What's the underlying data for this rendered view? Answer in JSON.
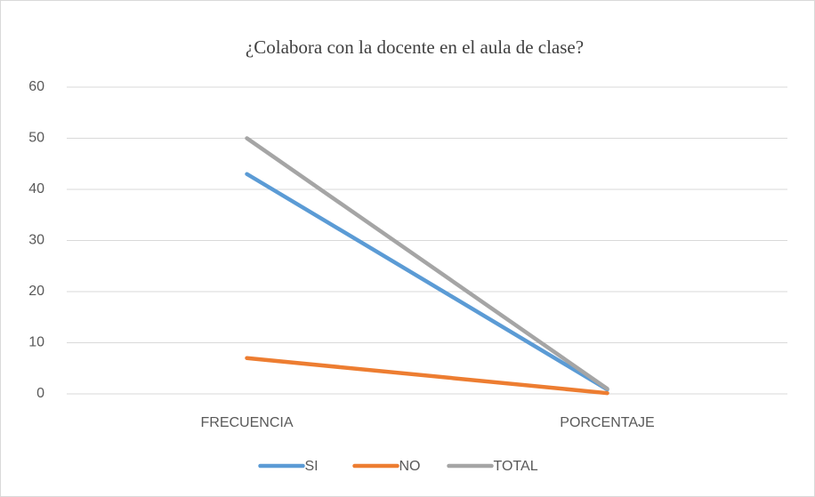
{
  "chart_data": {
    "type": "line",
    "title": "¿Colabora con la docente en el aula de clase?",
    "categories": [
      "FRECUENCIA",
      "PORCENTAJE"
    ],
    "series": [
      {
        "name": "SI",
        "color": "#5b9bd5",
        "values": [
          43,
          0.86
        ]
      },
      {
        "name": "NO",
        "color": "#ed7d31",
        "values": [
          7,
          0.14
        ]
      },
      {
        "name": "TOTAL",
        "color": "#a5a5a5",
        "values": [
          50,
          1
        ]
      }
    ],
    "ylim": [
      0,
      60
    ],
    "yticks": [
      0,
      10,
      20,
      30,
      40,
      50,
      60
    ],
    "grid": true,
    "legend": "bottom"
  }
}
